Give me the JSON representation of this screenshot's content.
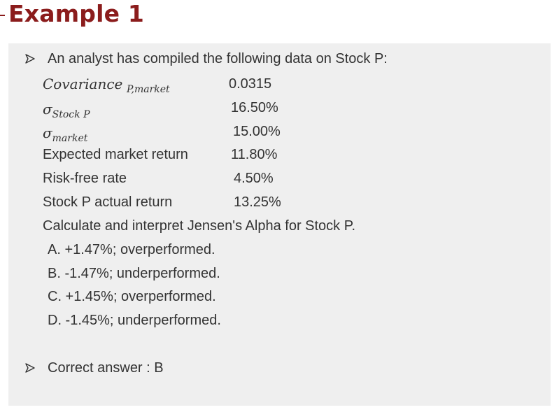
{
  "title": "Example 1",
  "intro": "An analyst has compiled the following data on Stock P:",
  "rows": [
    {
      "label_main": "Covariance",
      "label_sub": "P,market",
      "value": "0.0315"
    },
    {
      "label_main": "σ",
      "label_sub": "Stock P",
      "value": "16.50%"
    },
    {
      "label_main": "σ",
      "label_sub": "market",
      "value": "15.00%"
    },
    {
      "label_main": "Expected market return",
      "value": "11.80%"
    },
    {
      "label_main": "Risk-free rate",
      "value": "4.50%"
    },
    {
      "label_main": "Stock P actual return",
      "value": "13.25%"
    }
  ],
  "question": "Calculate and interpret Jensen's Alpha for Stock P.",
  "options": [
    "A.  +1.47%; overperformed.",
    "B.  -1.47%; underperformed.",
    "C.  +1.45%; overperformed.",
    "D.  -1.45%; underperformed."
  ],
  "answer": "Correct answer : B",
  "colors": {
    "title": "#8b1c1c",
    "panel_bg": "#efefef",
    "text": "#333333"
  },
  "icons": {
    "bullet": "arrow-bullet-icon"
  }
}
